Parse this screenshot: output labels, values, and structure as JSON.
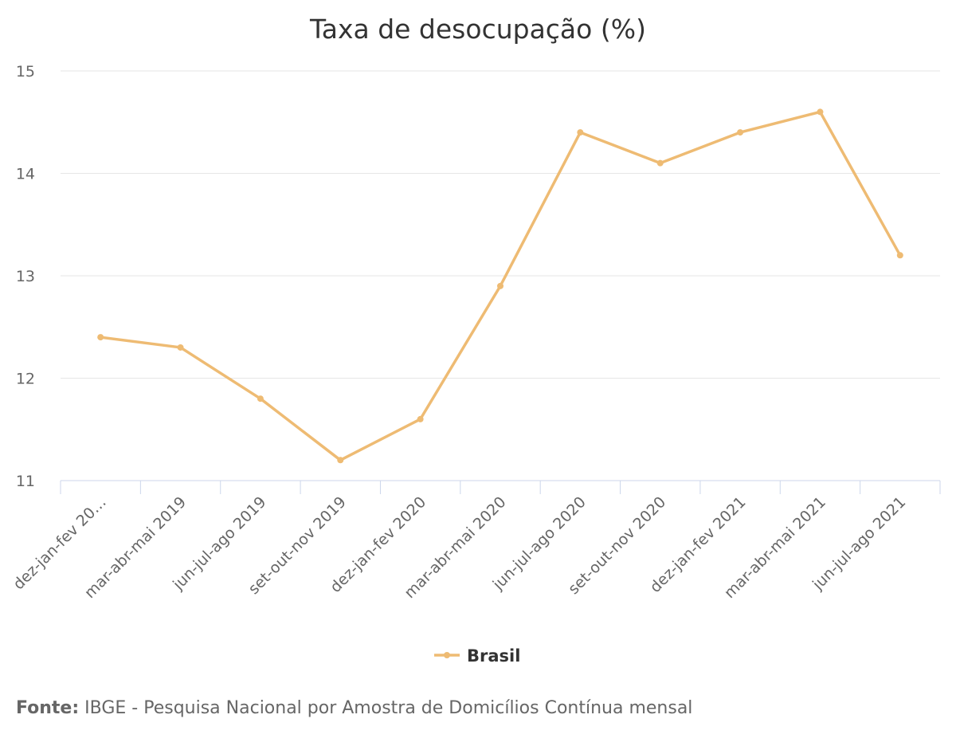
{
  "chart_data": {
    "type": "line",
    "title": "Taxa de desocupação (%)",
    "xlabel": "",
    "ylabel": "",
    "categories": [
      "dez-jan-fev 20…",
      "mar-abr-mai 2019",
      "jun-jul-ago 2019",
      "set-out-nov 2019",
      "dez-jan-fev 2020",
      "mar-abr-mai 2020",
      "jun-jul-ago 2020",
      "set-out-nov 2020",
      "dez-jan-fev 2021",
      "mar-abr-mai 2021",
      "jun-jul-ago 2021"
    ],
    "series": [
      {
        "name": "Brasil",
        "values": [
          12.4,
          12.3,
          11.8,
          11.2,
          11.6,
          12.9,
          14.4,
          14.1,
          14.4,
          14.6,
          13.2
        ]
      }
    ],
    "yticks": [
      11,
      12,
      13,
      14,
      15
    ],
    "ylim": [
      11,
      15
    ],
    "grid": true,
    "legend": "bottom-center",
    "colors": {
      "series": "#EEBB73",
      "grid": "#E6E6E6",
      "axis": "#CCD6EB",
      "text": "#333333",
      "muted": "#666666"
    }
  },
  "source": {
    "label": "Fonte:",
    "text": " IBGE - Pesquisa Nacional por Amostra de Domicílios Contínua mensal"
  }
}
